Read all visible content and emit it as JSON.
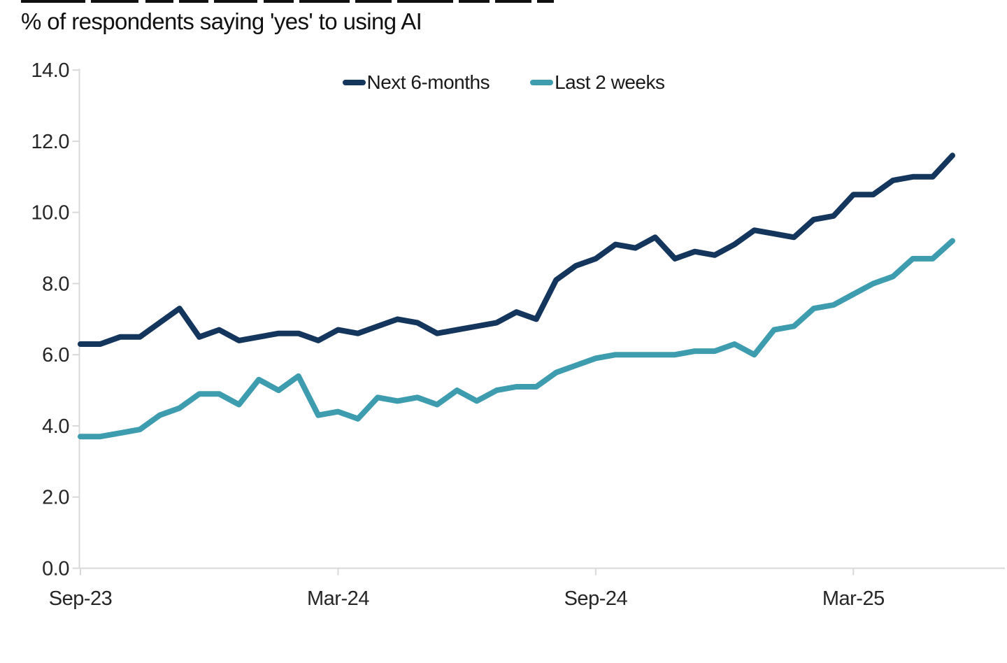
{
  "page": {
    "title": "% of respondents saying 'yes' to using AI"
  },
  "chart_data": {
    "type": "line",
    "title": "% of respondents saying 'yes' to using AI",
    "x_frequency": "bi-weekly survey waves",
    "x_tick_labels": [
      "Sep-23",
      "Mar-24",
      "Sep-24",
      "Mar-25"
    ],
    "x_tick_indices": [
      0,
      13,
      26,
      39
    ],
    "ylim": [
      0,
      14
    ],
    "y_ticks": [
      0,
      2,
      4,
      6,
      8,
      10,
      12,
      14
    ],
    "y_tick_labels": [
      "0.0",
      "2.0",
      "4.0",
      "6.0",
      "8.0",
      "10.0",
      "12.0",
      "14.0"
    ],
    "grid": false,
    "legend_position": "top-center",
    "axis_color": "#d9d9d9",
    "text_color": "#262626",
    "series": [
      {
        "name": "Next 6-months",
        "color": "#14355c",
        "values": [
          6.3,
          6.3,
          6.5,
          6.5,
          6.9,
          7.3,
          6.5,
          6.7,
          6.4,
          6.5,
          6.6,
          6.6,
          6.4,
          6.7,
          6.6,
          6.8,
          7.0,
          6.9,
          6.6,
          6.7,
          6.8,
          6.9,
          7.2,
          7.0,
          8.1,
          8.5,
          8.7,
          9.1,
          9.0,
          9.3,
          8.7,
          8.9,
          8.8,
          9.1,
          9.5,
          9.4,
          9.3,
          9.8,
          9.9,
          10.5,
          10.5,
          10.9,
          11.0,
          11.0,
          11.6
        ]
      },
      {
        "name": "Last 2 weeks",
        "color": "#3d9dae",
        "values": [
          3.7,
          3.7,
          3.8,
          3.9,
          4.3,
          4.5,
          4.9,
          4.9,
          4.6,
          5.3,
          5.0,
          5.4,
          4.3,
          4.4,
          4.2,
          4.8,
          4.7,
          4.8,
          4.6,
          5.0,
          4.7,
          5.0,
          5.1,
          5.1,
          5.5,
          5.7,
          5.9,
          6.0,
          6.0,
          6.0,
          6.0,
          6.1,
          6.1,
          6.3,
          6.0,
          6.7,
          6.8,
          7.3,
          7.4,
          7.7,
          8.0,
          8.2,
          8.7,
          8.7,
          9.2
        ]
      }
    ]
  }
}
